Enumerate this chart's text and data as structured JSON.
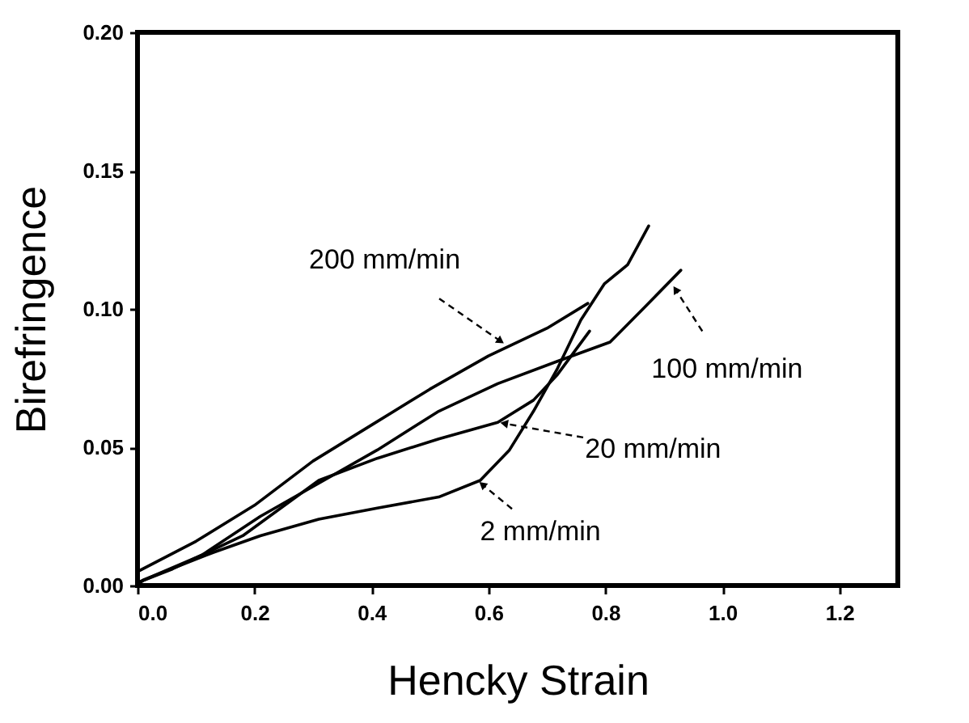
{
  "chart_data": {
    "type": "line",
    "xlabel": "Hencky Strain",
    "ylabel": "Birefringence",
    "xlim": [
      0,
      1.3
    ],
    "ylim": [
      0,
      0.2
    ],
    "xticks": [
      {
        "value": 0,
        "label": "0.0"
      },
      0.2,
      0.4,
      0.6,
      0.8,
      {
        "value": 1,
        "label": "1.0"
      },
      1.2
    ],
    "yticks": [
      {
        "value": 0,
        "label": "0.00"
      },
      0.05,
      {
        "value": 0.1,
        "label": "0.10"
      },
      0.15,
      {
        "value": 0.2,
        "label": "0.20"
      }
    ],
    "grid": false,
    "legend": false,
    "marker": "none",
    "line_style": "solid",
    "series": [
      {
        "color": "#000000",
        "x": [
          0,
          0.1,
          0.2,
          0.3,
          0.4,
          0.5,
          0.6,
          0.7,
          0.77
        ],
        "values": [
          0.005,
          0.016,
          0.029,
          0.045,
          0.058,
          0.071,
          0.083,
          0.093,
          0.102
        ]
      },
      {
        "color": "#000000",
        "x": [
          0,
          0.11,
          0.21,
          0.31,
          0.41,
          0.515,
          0.616,
          0.717,
          0.808,
          0.869,
          0.929
        ],
        "values": [
          0.001,
          0.011,
          0.025,
          0.037,
          0.049,
          0.063,
          0.073,
          0.081,
          0.088,
          0.101,
          0.114
        ]
      },
      {
        "color": "#000000",
        "x": [
          0,
          0.06,
          0.18,
          0.31,
          0.41,
          0.515,
          0.616,
          0.677,
          0.717,
          0.773
        ],
        "values": [
          0.001,
          0.006,
          0.018,
          0.038,
          0.046,
          0.053,
          0.059,
          0.067,
          0.076,
          0.092
        ]
      },
      {
        "color": "#000000",
        "x": [
          0,
          0.01,
          0.13,
          0.21,
          0.31,
          0.41,
          0.515,
          0.586,
          0.636,
          0.677,
          0.717,
          0.758,
          0.798,
          0.838,
          0.874
        ],
        "values": [
          0.0,
          0.002,
          0.012,
          0.018,
          0.024,
          0.028,
          0.032,
          0.038,
          0.049,
          0.063,
          0.078,
          0.096,
          0.109,
          0.116,
          0.13
        ]
      }
    ],
    "annotations": [
      {
        "text": "200 mm/min",
        "x": 0.63,
        "y": 0.087
      },
      {
        "text": "100 mm/min",
        "x": 0.914,
        "y": 0.109
      },
      {
        "text": "20 mm/min",
        "x": 0.616,
        "y": 0.059
      },
      {
        "text": "2 mm/min",
        "x": 0.581,
        "y": 0.038
      }
    ]
  }
}
